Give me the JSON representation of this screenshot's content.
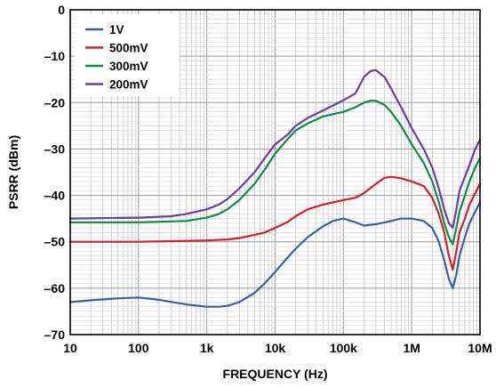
{
  "chart_data": {
    "type": "line",
    "xlabel": "FREQUENCY (Hz)",
    "ylabel": "PSRR (dBm)",
    "xscale": "log",
    "xlim": [
      10,
      10000000
    ],
    "ylim": [
      -70,
      0
    ],
    "grid": true,
    "legend_position": "top-left",
    "x_ticks": [
      {
        "value": 10,
        "label": "10"
      },
      {
        "value": 100,
        "label": "100"
      },
      {
        "value": 1000,
        "label": "1k"
      },
      {
        "value": 10000,
        "label": "10k"
      },
      {
        "value": 100000,
        "label": "100k"
      },
      {
        "value": 1000000,
        "label": "1M"
      },
      {
        "value": 10000000,
        "label": "10M"
      }
    ],
    "y_ticks": [
      {
        "value": 0,
        "label": "0"
      },
      {
        "value": -10,
        "label": "–10"
      },
      {
        "value": -20,
        "label": "–20"
      },
      {
        "value": -30,
        "label": "–30"
      },
      {
        "value": -40,
        "label": "–40"
      },
      {
        "value": -50,
        "label": "–50"
      },
      {
        "value": -60,
        "label": "–60"
      },
      {
        "value": -70,
        "label": "–70"
      }
    ],
    "series": [
      {
        "name": "1V",
        "color": "#3d5f9e",
        "points": [
          [
            10,
            -63
          ],
          [
            20,
            -62.6
          ],
          [
            50,
            -62.2
          ],
          [
            100,
            -62
          ],
          [
            200,
            -62.5
          ],
          [
            500,
            -63.5
          ],
          [
            1000,
            -64
          ],
          [
            1500,
            -64
          ],
          [
            2000,
            -63.8
          ],
          [
            3000,
            -63
          ],
          [
            5000,
            -61
          ],
          [
            7000,
            -59
          ],
          [
            10000,
            -56.5
          ],
          [
            15000,
            -53.5
          ],
          [
            20000,
            -51.5
          ],
          [
            30000,
            -49
          ],
          [
            50000,
            -46.7
          ],
          [
            70000,
            -45.5
          ],
          [
            100000,
            -45
          ],
          [
            150000,
            -45.8
          ],
          [
            200000,
            -46.5
          ],
          [
            300000,
            -46.2
          ],
          [
            500000,
            -45.5
          ],
          [
            700000,
            -45
          ],
          [
            1000000,
            -45
          ],
          [
            1500000,
            -45.5
          ],
          [
            2000000,
            -47
          ],
          [
            2500000,
            -50
          ],
          [
            3000000,
            -54
          ],
          [
            3500000,
            -58
          ],
          [
            4000000,
            -60
          ],
          [
            4500000,
            -57
          ],
          [
            5000000,
            -53
          ],
          [
            6000000,
            -49
          ],
          [
            7000000,
            -46
          ],
          [
            8500000,
            -43.5
          ],
          [
            10000000,
            -41.5
          ]
        ]
      },
      {
        "name": "500mV",
        "color": "#d0202e",
        "points": [
          [
            10,
            -50
          ],
          [
            100,
            -50
          ],
          [
            500,
            -49.8
          ],
          [
            1000,
            -49.7
          ],
          [
            2000,
            -49.5
          ],
          [
            3000,
            -49.2
          ],
          [
            5000,
            -48.5
          ],
          [
            7000,
            -48
          ],
          [
            10000,
            -47
          ],
          [
            15000,
            -45.8
          ],
          [
            20000,
            -44.5
          ],
          [
            30000,
            -43
          ],
          [
            50000,
            -42
          ],
          [
            100000,
            -41
          ],
          [
            150000,
            -40.5
          ],
          [
            200000,
            -39.5
          ],
          [
            300000,
            -37.5
          ],
          [
            400000,
            -36.2
          ],
          [
            500000,
            -36
          ],
          [
            700000,
            -36.3
          ],
          [
            1000000,
            -37
          ],
          [
            1500000,
            -38
          ],
          [
            2000000,
            -40.5
          ],
          [
            2500000,
            -44
          ],
          [
            3000000,
            -48
          ],
          [
            3500000,
            -53
          ],
          [
            4000000,
            -56
          ],
          [
            4500000,
            -52
          ],
          [
            5000000,
            -48
          ],
          [
            6000000,
            -45
          ],
          [
            7000000,
            -42
          ],
          [
            8500000,
            -39.5
          ],
          [
            10000000,
            -37.5
          ]
        ]
      },
      {
        "name": "300mV",
        "color": "#108a4a",
        "points": [
          [
            10,
            -45.8
          ],
          [
            100,
            -45.8
          ],
          [
            300,
            -45.6
          ],
          [
            500,
            -45.5
          ],
          [
            1000,
            -44.8
          ],
          [
            1500,
            -44
          ],
          [
            2000,
            -43
          ],
          [
            3000,
            -41
          ],
          [
            5000,
            -37.5
          ],
          [
            7000,
            -34.5
          ],
          [
            10000,
            -31
          ],
          [
            15000,
            -28
          ],
          [
            20000,
            -26
          ],
          [
            30000,
            -24.5
          ],
          [
            50000,
            -23
          ],
          [
            100000,
            -22
          ],
          [
            150000,
            -21
          ],
          [
            200000,
            -20
          ],
          [
            250000,
            -19.6
          ],
          [
            300000,
            -19.6
          ],
          [
            400000,
            -20.5
          ],
          [
            500000,
            -22
          ],
          [
            700000,
            -25
          ],
          [
            1000000,
            -29
          ],
          [
            1500000,
            -33
          ],
          [
            2000000,
            -37
          ],
          [
            2500000,
            -41.5
          ],
          [
            3000000,
            -46
          ],
          [
            3500000,
            -49
          ],
          [
            4000000,
            -50.5
          ],
          [
            4500000,
            -47
          ],
          [
            5000000,
            -43.5
          ],
          [
            6000000,
            -40
          ],
          [
            7000000,
            -37
          ],
          [
            8500000,
            -34
          ],
          [
            10000000,
            -32
          ]
        ]
      },
      {
        "name": "200mV",
        "color": "#6a3fa0",
        "points": [
          [
            10,
            -45
          ],
          [
            100,
            -44.8
          ],
          [
            300,
            -44.5
          ],
          [
            500,
            -44
          ],
          [
            1000,
            -43
          ],
          [
            1500,
            -42
          ],
          [
            2000,
            -40.8
          ],
          [
            3000,
            -38.5
          ],
          [
            5000,
            -35
          ],
          [
            7000,
            -32
          ],
          [
            10000,
            -29
          ],
          [
            15000,
            -27
          ],
          [
            20000,
            -25
          ],
          [
            30000,
            -23.3
          ],
          [
            50000,
            -21.7
          ],
          [
            100000,
            -19.5
          ],
          [
            150000,
            -18
          ],
          [
            200000,
            -14.5
          ],
          [
            250000,
            -13.2
          ],
          [
            300000,
            -13
          ],
          [
            400000,
            -14.5
          ],
          [
            500000,
            -17
          ],
          [
            700000,
            -21
          ],
          [
            1000000,
            -25.5
          ],
          [
            1500000,
            -30
          ],
          [
            2000000,
            -34
          ],
          [
            2500000,
            -38.5
          ],
          [
            3000000,
            -43
          ],
          [
            3500000,
            -46
          ],
          [
            4000000,
            -47
          ],
          [
            4500000,
            -43
          ],
          [
            5000000,
            -39
          ],
          [
            6000000,
            -36
          ],
          [
            7000000,
            -33.5
          ],
          [
            8500000,
            -30
          ],
          [
            10000000,
            -28
          ]
        ]
      }
    ]
  }
}
